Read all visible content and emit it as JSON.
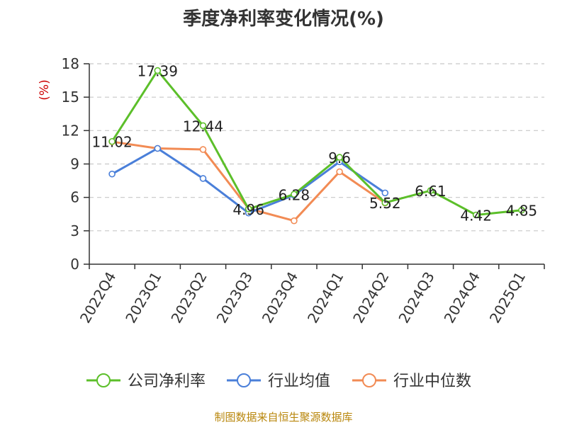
{
  "title": "季度净利率变化情况(%)",
  "source": "制图数据来自恒生聚源数据库",
  "chart_data": {
    "type": "line",
    "ylabel": "(%)",
    "ylim": [
      0,
      18
    ],
    "yticks": [
      0,
      3,
      6,
      9,
      12,
      15,
      18
    ],
    "categories": [
      "2022Q4",
      "2023Q1",
      "2023Q2",
      "2023Q3",
      "2023Q4",
      "2024Q1",
      "2024Q2",
      "2024Q3",
      "2024Q4",
      "2025Q1"
    ],
    "grid": true,
    "legend_position": "bottom",
    "series": [
      {
        "name": "公司净利率",
        "color": "#5cbf2a",
        "values": [
          11.02,
          17.39,
          12.44,
          4.96,
          6.28,
          9.6,
          5.52,
          6.61,
          4.42,
          4.85
        ],
        "labels": [
          "11.02",
          "17.39",
          "12.44",
          "4.96",
          "6.28",
          "9.6",
          "5.52",
          "6.61",
          "4.42",
          "4.85"
        ]
      },
      {
        "name": "行业均值",
        "color": "#4a7fd9",
        "values": [
          8.1,
          10.4,
          7.7,
          4.6,
          6.2,
          9.2,
          6.4,
          null,
          null,
          null
        ]
      },
      {
        "name": "行业中位数",
        "color": "#f28b54",
        "values": [
          11.0,
          10.4,
          10.3,
          5.0,
          3.9,
          8.3,
          5.5,
          null,
          null,
          null
        ]
      }
    ]
  }
}
